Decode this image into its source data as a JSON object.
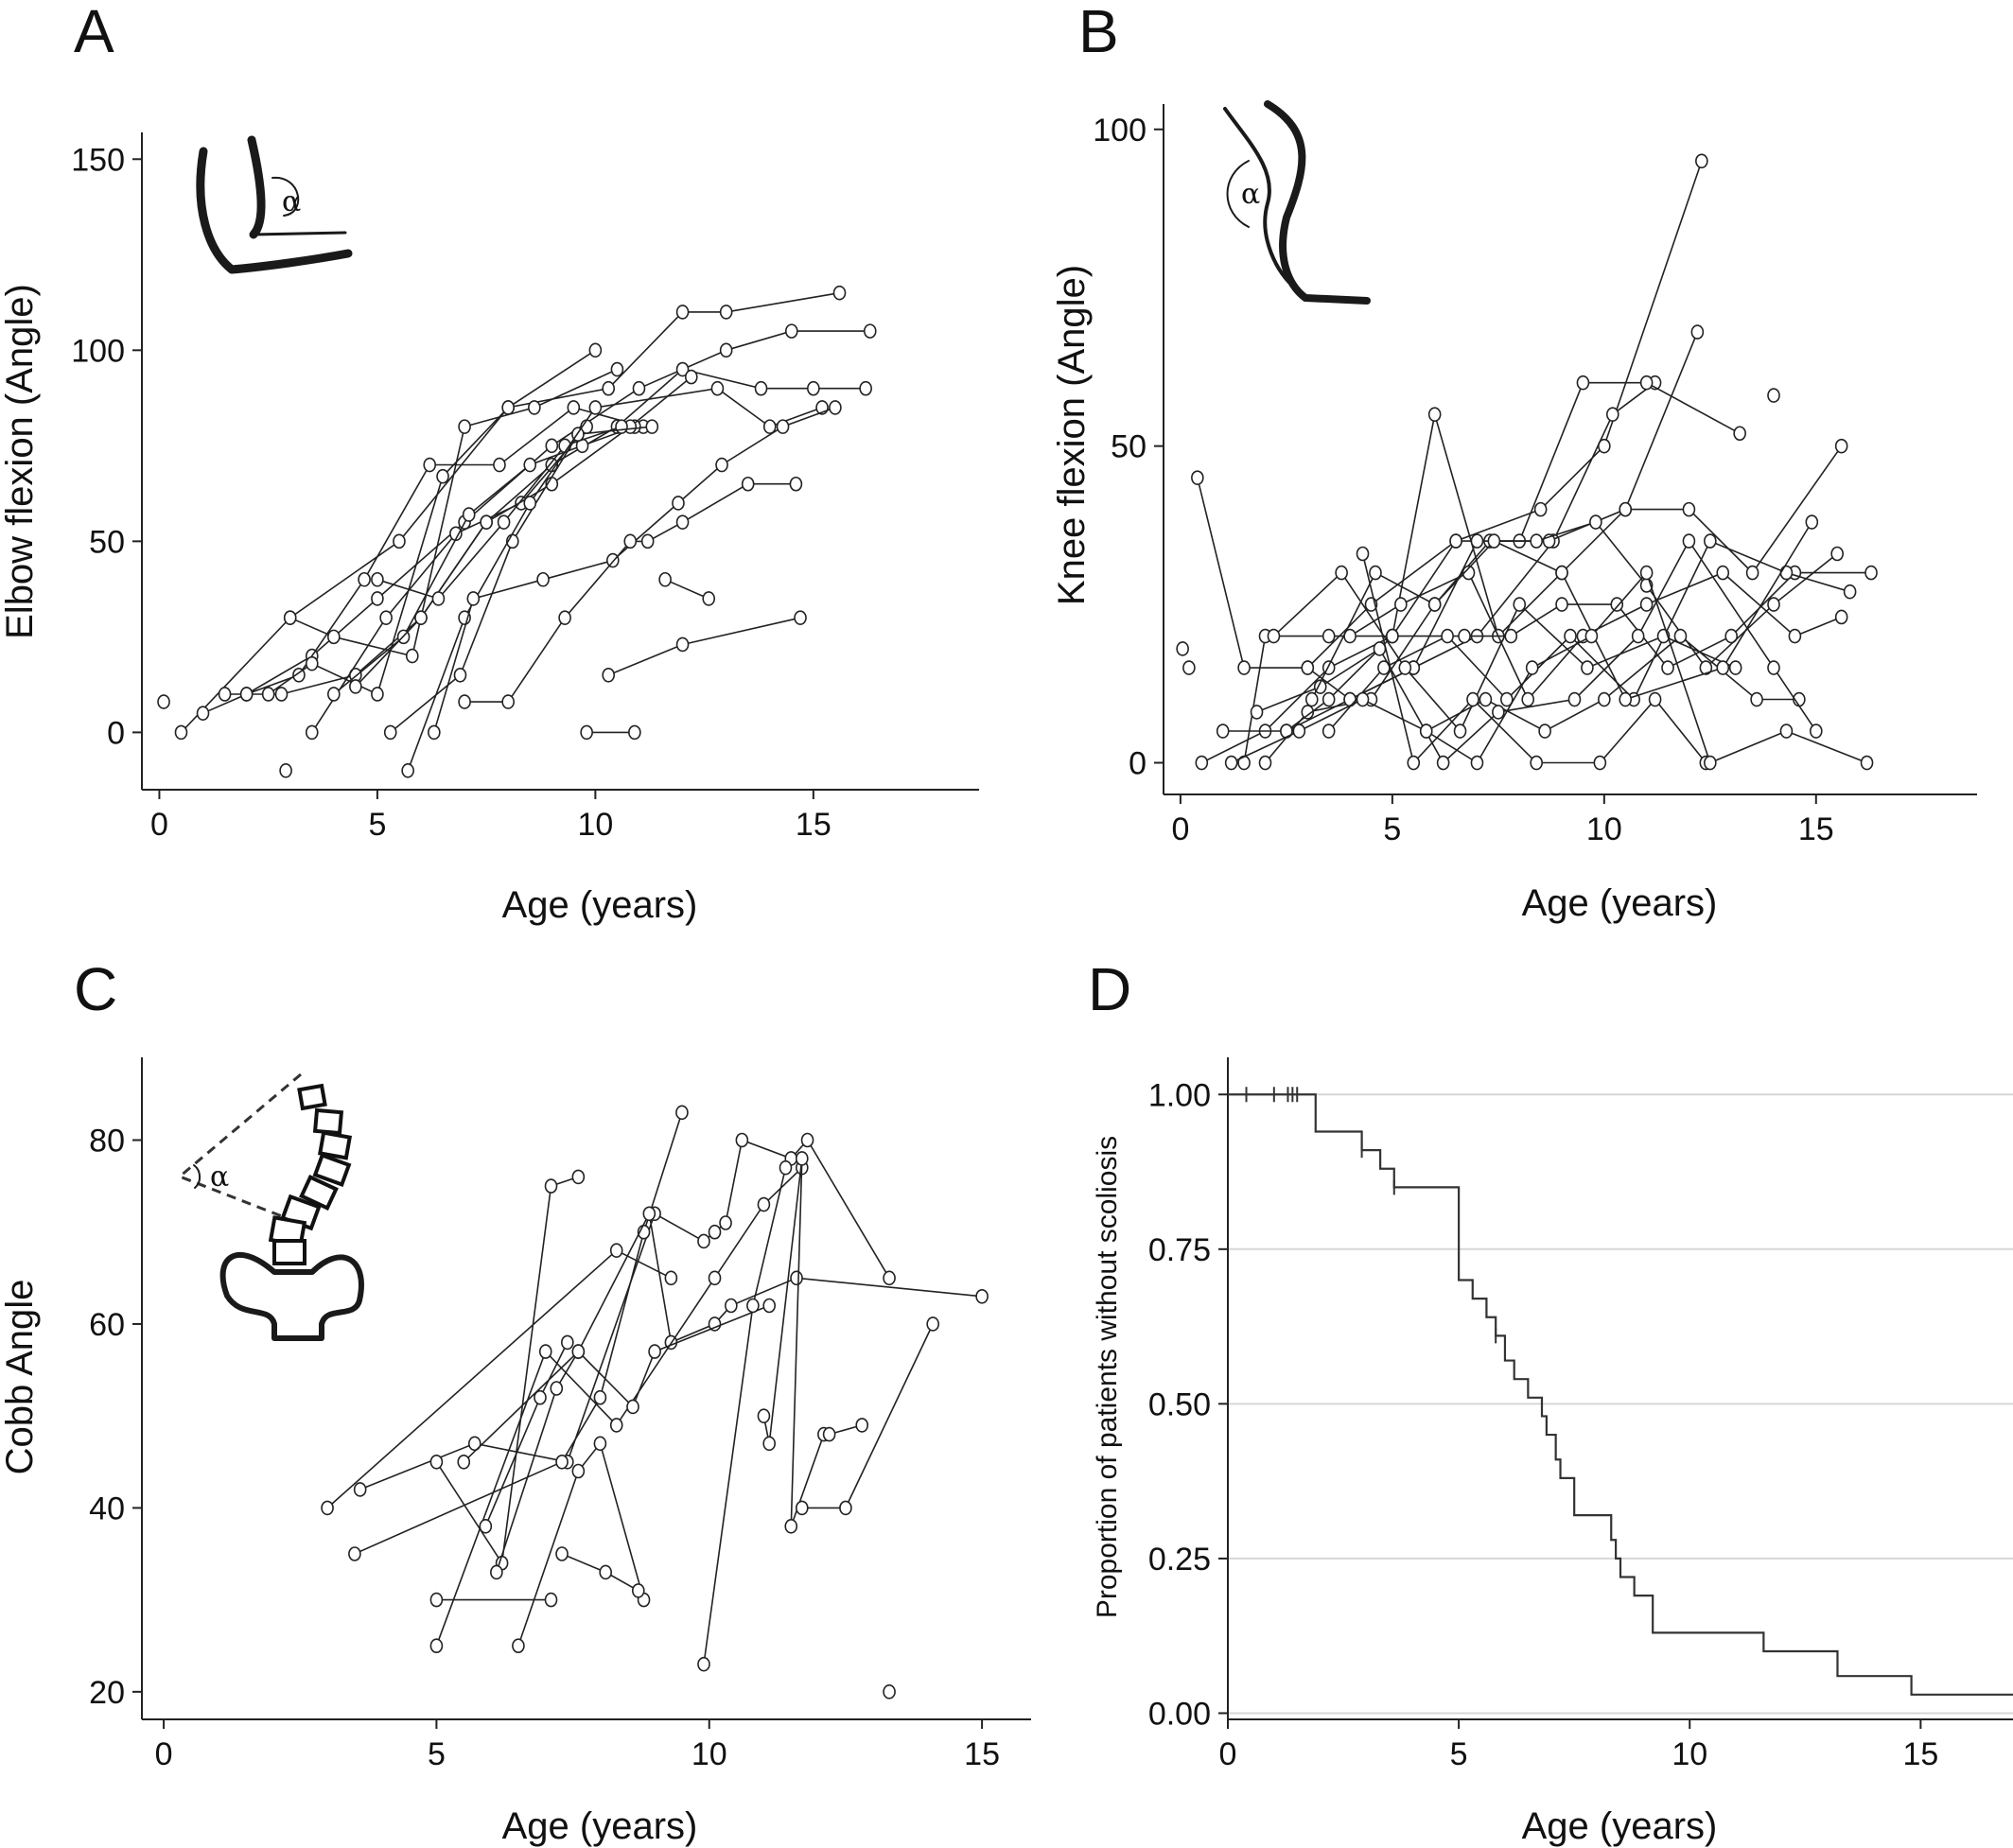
{
  "panels": {
    "A": {
      "letter": "A",
      "xlabel": "Age (years)",
      "ylabel": "Elbow flexion (Angle)",
      "inset_symbol": "α"
    },
    "B": {
      "letter": "B",
      "xlabel": "Age (years)",
      "ylabel": "Knee flexion (Angle)",
      "inset_symbol": "α"
    },
    "C": {
      "letter": "C",
      "xlabel": "Age (years)",
      "ylabel": "Cobb Angle",
      "inset_symbol": "α"
    },
    "D": {
      "letter": "D",
      "xlabel": "Age (years)",
      "ylabel": "Proportion of patients without scoliosis"
    }
  },
  "chart_data": [
    {
      "panel": "A",
      "type": "line",
      "xlabel": "Age (years)",
      "ylabel": "Elbow flexion (Angle)",
      "xlim": [
        -0.4,
        18.8
      ],
      "ylim": [
        -15,
        157
      ],
      "xticks": [
        0,
        5,
        10,
        15
      ],
      "yticks": [
        0,
        50,
        100,
        150
      ],
      "grid": false,
      "marker": "open-circle",
      "series": [
        {
          "x": [
            0.5,
            3.0,
            5.5,
            8.0,
            10.3,
            12.0,
            13.0,
            15.6
          ],
          "y": [
            0,
            30,
            50,
            85,
            90,
            110,
            110,
            115
          ]
        },
        {
          "x": [
            1.0,
            2.0,
            3.5,
            5.0,
            7.0,
            9.0,
            11.0,
            13.0,
            14.5,
            16.3
          ],
          "y": [
            5,
            10,
            20,
            35,
            55,
            75,
            90,
            100,
            105,
            105
          ]
        },
        {
          "x": [
            1.5,
            2.8,
            4.5,
            6.0,
            7.5,
            9.0,
            10.5,
            12.0,
            13.8,
            15.0,
            16.2
          ],
          "y": [
            10,
            10,
            15,
            30,
            55,
            70,
            80,
            95,
            90,
            90,
            90
          ]
        },
        {
          "x": [
            2.0,
            3.2,
            4.7,
            6.2,
            7.8,
            9.5,
            11.1
          ],
          "y": [
            10,
            15,
            40,
            70,
            70,
            85,
            80
          ]
        },
        {
          "x": [
            2.5,
            3.5,
            5.0,
            6.5,
            8.0,
            10.0
          ],
          "y": [
            10,
            18,
            10,
            67,
            85,
            100
          ]
        },
        {
          "x": [
            3.0,
            4.0,
            5.8,
            7.0,
            8.6,
            10.5
          ],
          "y": [
            30,
            25,
            20,
            80,
            85,
            95
          ]
        },
        {
          "x": [
            3.5,
            5.2,
            6.8,
            8.3,
            9.8
          ],
          "y": [
            0,
            30,
            52,
            60,
            80
          ]
        },
        {
          "x": [
            4.0,
            5.6,
            7.1,
            8.5,
            9.7,
            10.9
          ],
          "y": [
            10,
            25,
            57,
            70,
            75,
            80
          ]
        },
        {
          "x": [
            4.5,
            6.0,
            7.5,
            9.0,
            10.8,
            12.2
          ],
          "y": [
            12,
            30,
            55,
            65,
            80,
            93
          ]
        },
        {
          "x": [
            5.0,
            6.4,
            7.9,
            9.3,
            10.6
          ],
          "y": [
            40,
            35,
            55,
            75,
            80
          ]
        },
        {
          "x": [
            5.3,
            6.9,
            8.1,
            9.6,
            11.3
          ],
          "y": [
            0,
            15,
            50,
            78,
            80
          ]
        },
        {
          "x": [
            5.7,
            7.0,
            8.5,
            10.0,
            12.8,
            14.0,
            15.2
          ],
          "y": [
            -10,
            30,
            60,
            85,
            90,
            80,
            85
          ]
        },
        {
          "x": [
            6.3,
            7.2,
            8.8,
            10.4,
            11.9,
            12.9,
            14.3,
            15.5
          ],
          "y": [
            0,
            35,
            40,
            45,
            60,
            70,
            80,
            85
          ]
        },
        {
          "x": [
            7.0,
            8.0,
            9.3,
            10.8,
            11.2,
            12.0,
            13.5,
            14.6
          ],
          "y": [
            8,
            8,
            30,
            50,
            50,
            55,
            65,
            65
          ]
        },
        {
          "x": [
            9.8,
            10.9
          ],
          "y": [
            0,
            0
          ]
        },
        {
          "x": [
            10.3,
            12.0,
            14.7
          ],
          "y": [
            15,
            23,
            30
          ]
        },
        {
          "x": [
            11.6,
            12.6
          ],
          "y": [
            40,
            35
          ]
        }
      ],
      "isolated_points": [
        {
          "x": 0.1,
          "y": 8
        },
        {
          "x": 2.9,
          "y": -10
        }
      ]
    },
    {
      "panel": "B",
      "type": "line",
      "xlabel": "Age (years)",
      "ylabel": "Knee flexion (Angle)",
      "xlim": [
        -0.4,
        18.8
      ],
      "ylim": [
        -5,
        104
      ],
      "xticks": [
        0,
        5,
        10,
        15
      ],
      "yticks": [
        0,
        50,
        100
      ],
      "grid": false,
      "marker": "open-circle",
      "series": [
        {
          "x": [
            0.4,
            1.5,
            3.0,
            4.5,
            6.5,
            8.5,
            10.0,
            12.3
          ],
          "y": [
            45,
            15,
            15,
            25,
            35,
            40,
            50,
            95
          ]
        },
        {
          "x": [
            0.5,
            2.0,
            3.5,
            5.0,
            6.0,
            7.5,
            9.0,
            10.5,
            12.2
          ],
          "y": [
            0,
            5,
            15,
            20,
            55,
            20,
            30,
            40,
            68
          ]
        },
        {
          "x": [
            1.0,
            2.5,
            4.0,
            5.5,
            7.0,
            8.8,
            10.2,
            11.2
          ],
          "y": [
            5,
            5,
            10,
            15,
            20,
            35,
            55,
            60
          ]
        },
        {
          "x": [
            1.5,
            2.0,
            3.5,
            5.0,
            6.5,
            8.0,
            9.5,
            11.0,
            13.2
          ],
          "y": [
            0,
            20,
            20,
            20,
            35,
            35,
            60,
            60,
            52
          ]
        },
        {
          "x": [
            2.0,
            3.0,
            4.5,
            6.0,
            7.3,
            8.7,
            10.5,
            12.0,
            13.5,
            15.6
          ],
          "y": [
            0,
            8,
            10,
            25,
            35,
            35,
            40,
            40,
            30,
            50
          ]
        },
        {
          "x": [
            2.5,
            3.5,
            5.0,
            6.7,
            7.8,
            9.0,
            10.3,
            11.5,
            13.0,
            14.5,
            16.3
          ],
          "y": [
            5,
            10,
            20,
            20,
            20,
            25,
            25,
            15,
            20,
            30,
            30
          ]
        },
        {
          "x": [
            3.0,
            4.0,
            5.5,
            7.0,
            8.4,
            9.8,
            11.0,
            12.4,
            14.0,
            15.5
          ],
          "y": [
            15,
            10,
            15,
            35,
            35,
            38,
            28,
            15,
            25,
            33
          ]
        },
        {
          "x": [
            3.5,
            4.8,
            6.3,
            7.7,
            9.2,
            10.7,
            12.5,
            14.3,
            15.8
          ],
          "y": [
            5,
            15,
            20,
            10,
            20,
            10,
            35,
            30,
            27
          ]
        },
        {
          "x": [
            4.0,
            5.2,
            6.8,
            8.2,
            9.5,
            11.0,
            12.8,
            14.5,
            15.6
          ],
          "y": [
            20,
            25,
            30,
            10,
            20,
            25,
            30,
            20,
            23
          ]
        },
        {
          "x": [
            2.2,
            3.8,
            5.3,
            6.6,
            8.0,
            9.6,
            11.4,
            13.1
          ],
          "y": [
            20,
            30,
            15,
            5,
            25,
            15,
            20,
            15
          ]
        },
        {
          "x": [
            1.2,
            2.8,
            4.3,
            5.8,
            7.2,
            8.6,
            10.0,
            11.8,
            13.6,
            14.6
          ],
          "y": [
            0,
            5,
            10,
            5,
            10,
            5,
            10,
            20,
            10,
            10
          ]
        },
        {
          "x": [
            1.8,
            3.3,
            4.7,
            6.2,
            7.5,
            9.3,
            10.8,
            12.0,
            14.0,
            15.0
          ],
          "y": [
            8,
            12,
            18,
            0,
            8,
            10,
            20,
            35,
            15,
            5
          ]
        },
        {
          "x": [
            3.1,
            4.6,
            6.0,
            7.4,
            9.0,
            10.5,
            12.8,
            14.9
          ],
          "y": [
            10,
            30,
            25,
            35,
            30,
            10,
            15,
            38
          ]
        },
        {
          "x": [
            4.3,
            5.5,
            6.9,
            8.4,
            9.9,
            11.2,
            12.4
          ],
          "y": [
            33,
            0,
            10,
            0,
            0,
            10,
            0
          ]
        },
        {
          "x": [
            5.8,
            7.0,
            8.3,
            9.7,
            11.0,
            12.5,
            14.3,
            16.2
          ],
          "y": [
            5,
            0,
            15,
            20,
            30,
            0,
            5,
            0
          ]
        }
      ],
      "isolated_points": [
        {
          "x": 0.05,
          "y": 18
        },
        {
          "x": 0.2,
          "y": 15
        },
        {
          "x": 14.0,
          "y": 58
        }
      ]
    },
    {
      "panel": "C",
      "type": "line",
      "xlabel": "Age (years)",
      "ylabel": "Cobb Angle",
      "xlim": [
        -0.4,
        15.9
      ],
      "ylim": [
        17,
        89
      ],
      "xticks": [
        0,
        5,
        10,
        15
      ],
      "yticks": [
        20,
        40,
        60,
        80
      ],
      "grid": false,
      "marker": "open-circle",
      "series": [
        {
          "x": [
            3.0,
            8.3,
            9.3
          ],
          "y": [
            40,
            68,
            65
          ]
        },
        {
          "x": [
            3.6,
            5.7,
            7.4,
            9.0,
            9.9,
            10.1,
            10.3,
            10.6,
            11.5,
            11.8,
            13.3
          ],
          "y": [
            42,
            47,
            45,
            72,
            69,
            70,
            71,
            80,
            78,
            80,
            65
          ]
        },
        {
          "x": [
            3.5,
            7.3,
            8.0,
            8.8,
            9.5
          ],
          "y": [
            35,
            45,
            52,
            70,
            83
          ]
        },
        {
          "x": [
            5.0,
            6.2,
            7.1,
            7.6
          ],
          "y": [
            45,
            34,
            75,
            76
          ]
        },
        {
          "x": [
            5.5,
            7.6,
            8.9,
            9.3,
            10.1,
            10.4,
            11.6,
            15.0
          ],
          "y": [
            45,
            57,
            72,
            58,
            60,
            62,
            65,
            63
          ]
        },
        {
          "x": [
            5.0,
            7.1
          ],
          "y": [
            30,
            30
          ]
        },
        {
          "x": [
            5.0,
            7.0,
            8.3,
            10.1,
            11.0,
            11.7
          ],
          "y": [
            25,
            57,
            49,
            65,
            73,
            77
          ]
        },
        {
          "x": [
            5.9,
            6.9,
            7.4
          ],
          "y": [
            38,
            52,
            58
          ]
        },
        {
          "x": [
            6.1,
            7.2,
            7.6,
            8.6,
            9.0,
            11.1
          ],
          "y": [
            33,
            53,
            57,
            51,
            57,
            62
          ]
        },
        {
          "x": [
            6.5,
            7.6,
            8.0,
            8.8
          ],
          "y": [
            25,
            44,
            47,
            30
          ]
        },
        {
          "x": [
            7.3,
            8.1,
            8.7
          ],
          "y": [
            35,
            33,
            31
          ]
        },
        {
          "x": [
            9.9,
            10.8,
            11.4
          ],
          "y": [
            23,
            62,
            77
          ]
        },
        {
          "x": [
            11.0,
            11.1,
            11.7,
            11.5,
            12.1,
            12.2,
            12.8
          ],
          "y": [
            50,
            47,
            78,
            38,
            48,
            48,
            49
          ]
        },
        {
          "x": [
            11.7,
            12.5,
            14.1
          ],
          "y": [
            40,
            40,
            60
          ]
        }
      ],
      "isolated_points": [
        {
          "x": 13.3,
          "y": 20
        }
      ]
    },
    {
      "panel": "D",
      "type": "line",
      "subtype": "kaplan-meier",
      "xlabel": "Age (years)",
      "ylabel": "Proportion of patients without scoliosis",
      "xlim": [
        0,
        17
      ],
      "ylim": [
        -0.01,
        1.06
      ],
      "xticks": [
        0,
        5,
        10,
        15
      ],
      "yticks": [
        0.0,
        0.25,
        0.5,
        0.75,
        1.0
      ],
      "ytick_labels": [
        "0.00",
        "0.25",
        "0.50",
        "0.75",
        "1.00"
      ],
      "grid": "horizontal",
      "steps": {
        "x": [
          0,
          1.9,
          2.9,
          3.3,
          3.6,
          5.0,
          5.0,
          5.3,
          5.6,
          5.8,
          6.0,
          6.2,
          6.5,
          6.8,
          6.9,
          7.1,
          7.2,
          7.5,
          8.3,
          8.4,
          8.5,
          8.8,
          9.2,
          11.6,
          13.2,
          14.8,
          17.0
        ],
        "y": [
          1.0,
          0.94,
          0.91,
          0.88,
          0.85,
          0.79,
          0.7,
          0.67,
          0.64,
          0.61,
          0.57,
          0.54,
          0.51,
          0.48,
          0.45,
          0.41,
          0.38,
          0.32,
          0.28,
          0.25,
          0.22,
          0.19,
          0.13,
          0.1,
          0.06,
          0.03,
          0.03
        ]
      },
      "censored_x": [
        0.4,
        1.0,
        1.3,
        1.4,
        1.5,
        2.9,
        3.6,
        5.8
      ]
    }
  ]
}
